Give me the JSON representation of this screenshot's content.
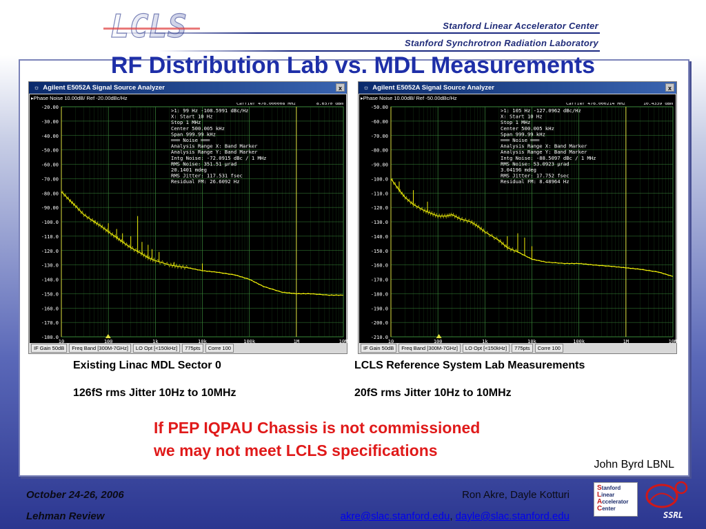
{
  "header": {
    "logo_text": "LCLS",
    "institution_line1": "Stanford Linear Accelerator Center",
    "institution_line2": "Stanford Synchrotron Radiation Laboratory"
  },
  "title": "RF Distribution Lab vs. MDL Measurements",
  "analyzers": [
    {
      "window_title": "Agilent E5052A Signal Source Analyzer",
      "close_label": "x",
      "subtitle": "▸Phase Noise 10.00dB/ Ref -20.00dBc/Hz",
      "carrier_label": "Carrier 476.000008 MHz",
      "carrier_power": "8.6570 dBm",
      "readout": [
        ">1:  99 Hz   -108.5991 dBc/Hz",
        "  X: Start 10 Hz",
        "     Stop 1 MHz",
        "   Center 500.005 kHz",
        "     Span 999.99 kHz",
        "═══ Noise ═══",
        "Analysis Range X: Band Marker",
        "Analysis Range Y: Band Marker",
        "Intg Noise: -72.0915 dBc / 1 MHz",
        " RMS Noise: 351.51 µrad",
        "            20.1401 mdeg",
        "RMS Jitter: 117.531 fsec",
        "Residual FM: 26.6092 Hz"
      ],
      "status": [
        "IF Gain 50dB",
        "Freq Band [300M-7GHz]",
        "LO Opt [<150kHz]",
        "775pts",
        "Corre 100"
      ]
    },
    {
      "window_title": "Agilent E5052A Signal Source Analyzer",
      "close_label": "x",
      "subtitle": "▸Phase Noise 10.00dB/ Ref -50.00dBc/Hz",
      "carrier_label": "Carrier 476.000214 MHz",
      "carrier_power": "10.4339 dBm",
      "readout": [
        ">1:  105 Hz   -127.0962 dBc/Hz",
        "  X: Start 10 Hz",
        "     Stop 1 MHz",
        "   Center 500.005 kHz",
        "     Span 999.99 kHz",
        "═══ Noise ═══",
        "Analysis Range X: Band Marker",
        "Analysis Range Y: Band Marker",
        "Intg Noise: -88.5097 dBc / 1 MHz",
        " RMS Noise: 53.0923 µrad",
        "            3.04196 mdeg",
        "RMS Jitter: 17.752 fsec",
        "Residual FM: 8.48964 Hz"
      ],
      "status": [
        "IF Gain 50dB",
        "Freq Band [300M-7GHz]",
        "LO Opt [<150kHz]",
        "775pts",
        "Corre 100"
      ]
    }
  ],
  "chart_data": [
    {
      "type": "line",
      "title": "Phase Noise 10.00dB/ Ref -20.00dBc/Hz",
      "xscale": "log",
      "x_ticks": [
        "10",
        "100",
        "1k",
        "10k",
        "100k",
        "1M",
        "10M"
      ],
      "y_ticks": [
        "-20.00",
        "-30.00",
        "-40.00",
        "-50.00",
        "-60.00",
        "-70.00",
        "-80.00",
        "-90.00",
        "-100.0",
        "-110.0",
        "-120.0",
        "-130.0",
        "-140.0",
        "-150.0",
        "-160.0",
        "-170.0",
        "-180.0"
      ],
      "xlim": [
        10,
        10000000
      ],
      "ylim": [
        -180,
        -20
      ],
      "grid": true,
      "band_markers_hz": [
        10,
        1000000
      ],
      "marker_hz": 99,
      "series": [
        {
          "color": "#f2f20a",
          "x": [
            10,
            15,
            20,
            30,
            50,
            70,
            100,
            150,
            200,
            300,
            500,
            700,
            1000,
            2000,
            3000,
            5000,
            10000,
            20000,
            50000,
            100000,
            200000,
            500000,
            1000000,
            2000000,
            5000000,
            10000000
          ],
          "y": [
            -79,
            -85,
            -89,
            -95,
            -100,
            -103,
            -107,
            -111,
            -114,
            -118,
            -122,
            -125,
            -127,
            -130,
            -131,
            -132,
            -134,
            -135,
            -137,
            -140,
            -145,
            -149,
            -150,
            -150,
            -151,
            -151
          ]
        }
      ],
      "spurs": [
        {
          "x": 50,
          "y": -99,
          "peak": -100
        },
        {
          "x": 100,
          "y": -107,
          "peak": -101
        },
        {
          "x": 150,
          "y": -111,
          "peak": -105
        },
        {
          "x": 200,
          "y": -114,
          "peak": -108
        },
        {
          "x": 300,
          "y": -118,
          "peak": -110
        },
        {
          "x": 420,
          "y": -121,
          "peak": -96
        },
        {
          "x": 520,
          "y": -122,
          "peak": -114
        },
        {
          "x": 700,
          "y": -125,
          "peak": -116
        },
        {
          "x": 850,
          "y": -126,
          "peak": -119
        },
        {
          "x": 1200,
          "y": -128,
          "peak": -121
        },
        {
          "x": 2500,
          "y": -130,
          "peak": -128
        },
        {
          "x": 10000,
          "y": -134,
          "peak": -129
        }
      ]
    },
    {
      "type": "line",
      "title": "Phase Noise 10.00dB/ Ref -50.00dBc/Hz",
      "xscale": "log",
      "x_ticks": [
        "10",
        "100",
        "1k",
        "10k",
        "100k",
        "1M",
        "10M"
      ],
      "y_ticks": [
        "-50.00",
        "-60.00",
        "-70.00",
        "-80.00",
        "-90.00",
        "-100.0",
        "-110.0",
        "-120.0",
        "-130.0",
        "-140.0",
        "-150.0",
        "-160.0",
        "-170.0",
        "-180.0",
        "-190.0",
        "-200.0",
        "-210.0"
      ],
      "xlim": [
        10,
        10000000
      ],
      "ylim": [
        -210,
        -50
      ],
      "grid": true,
      "band_markers_hz": [
        10,
        1000000
      ],
      "marker_hz": 105,
      "series": [
        {
          "color": "#f2f20a",
          "x": [
            10,
            15,
            20,
            30,
            50,
            70,
            100,
            150,
            200,
            300,
            500,
            700,
            1000,
            2000,
            3000,
            5000,
            10000,
            20000,
            50000,
            100000,
            200000,
            500000,
            1000000,
            2000000,
            5000000,
            10000000
          ],
          "y": [
            -100,
            -108,
            -113,
            -118,
            -122,
            -124,
            -126,
            -126,
            -125,
            -128,
            -130,
            -133,
            -137,
            -143,
            -148,
            -151,
            -156,
            -158,
            -159,
            -159,
            -160,
            -161,
            -162,
            -163,
            -165,
            -168
          ]
        }
      ],
      "spurs": [
        {
          "x": 15,
          "y": -108,
          "peak": -102
        },
        {
          "x": 30,
          "y": -118,
          "peak": -108
        },
        {
          "x": 60,
          "y": -123,
          "peak": -116
        },
        {
          "x": 3000,
          "y": -148,
          "peak": -140
        },
        {
          "x": 5000,
          "y": -151,
          "peak": -138
        },
        {
          "x": 7000,
          "y": -153,
          "peak": -141
        },
        {
          "x": 10000,
          "y": -156,
          "peak": -147
        }
      ]
    }
  ],
  "captions": {
    "left_line1": "Existing Linac MDL Sector 0",
    "left_line2": "126fS rms Jitter 10Hz to 10MHz",
    "right_line1": "LCLS Reference System Lab Measurements",
    "right_line2": "20fS rms Jitter 10Hz to 10MHz"
  },
  "warning": {
    "line1": "If PEP IQPAU Chassis is not commissioned",
    "line2": "we may not meet LCLS specifications"
  },
  "credit": "John Byrd LBNL",
  "footer": {
    "date": "October 24-26, 2006",
    "review": "Lehman Review",
    "authors": "Ron Akre, Dayle Kotturi",
    "email1": "akre@slac.stanford.edu",
    "email_sep": ", ",
    "email2": "dayle@slac.stanford.edu",
    "slac_logo_letters": [
      "S",
      "L",
      "A",
      "C"
    ],
    "slac_logo_rest": [
      "tanford",
      "inear",
      "ccelerator",
      "enter"
    ],
    "ssrl_text": "SSRL"
  },
  "colors": {
    "title": "#1e2fa8",
    "warning": "#e01a1a",
    "trace": "#f2f20a",
    "grid": "#3a8a3a",
    "marker": "#e0e040"
  }
}
